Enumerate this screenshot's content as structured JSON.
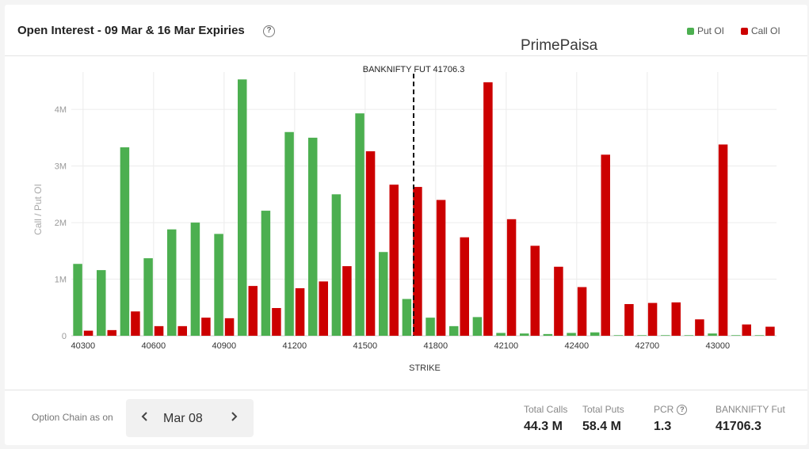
{
  "header": {
    "title": "Open Interest - 09 Mar & 16 Mar Expiries",
    "help_icon": "?",
    "watermark": "PrimePaisa",
    "legend": [
      {
        "label": "Put OI",
        "color": "#4caf50"
      },
      {
        "label": "Call OI",
        "color": "#cc0000"
      }
    ]
  },
  "chart_data": {
    "type": "bar",
    "xlabel": "STRIKE",
    "ylabel": "Call / Put OI",
    "ylim": [
      0,
      4800000
    ],
    "yticks": [
      0,
      1000000,
      2000000,
      3000000,
      4000000
    ],
    "ytick_labels": [
      "0",
      "1M",
      "2M",
      "3M",
      "4M"
    ],
    "x_tick_labels": [
      "40300",
      "40600",
      "40900",
      "41200",
      "41500",
      "41800",
      "42100",
      "42400",
      "42700",
      "43000"
    ],
    "grid": true,
    "categories": [
      "40300",
      "40400",
      "40500",
      "40600",
      "40700",
      "40800",
      "40900",
      "41000",
      "41100",
      "41200",
      "41300",
      "41400",
      "41500",
      "41600",
      "41700",
      "41800",
      "41900",
      "42000",
      "42100",
      "42200",
      "42300",
      "42400",
      "42500",
      "42600",
      "42700",
      "42800",
      "42900",
      "43000",
      "43100",
      "43200"
    ],
    "series": [
      {
        "name": "Put OI",
        "color": "#4caf50",
        "values": [
          1270000,
          1160000,
          3330000,
          1370000,
          1880000,
          2000000,
          1800000,
          4530000,
          2210000,
          3600000,
          3500000,
          2500000,
          3930000,
          1480000,
          650000,
          320000,
          170000,
          330000,
          50000,
          40000,
          30000,
          50000,
          60000,
          10000,
          10000,
          10000,
          10000,
          40000,
          10000,
          10000
        ]
      },
      {
        "name": "Call OI",
        "color": "#cc0000",
        "values": [
          90000,
          100000,
          430000,
          170000,
          170000,
          320000,
          310000,
          880000,
          490000,
          840000,
          960000,
          1230000,
          3260000,
          2670000,
          2630000,
          2400000,
          1740000,
          4480000,
          2060000,
          1590000,
          1220000,
          860000,
          3200000,
          560000,
          580000,
          590000,
          290000,
          3380000,
          200000,
          160000
        ]
      }
    ],
    "reference_line": {
      "label": "BANKNIFTY FUT 41706.3",
      "value": 41706.3
    }
  },
  "footer": {
    "option_chain_label": "Option Chain as on",
    "date": "Mar 08",
    "prev_icon": "‹",
    "next_icon": "›",
    "stats": [
      {
        "label": "Total Calls",
        "value": "44.3 M"
      },
      {
        "label": "Total Puts",
        "value": "58.4 M"
      },
      {
        "label": "PCR",
        "value": "1.3"
      },
      {
        "label": "BANKNIFTY Fut",
        "value": "41706.3"
      }
    ]
  }
}
